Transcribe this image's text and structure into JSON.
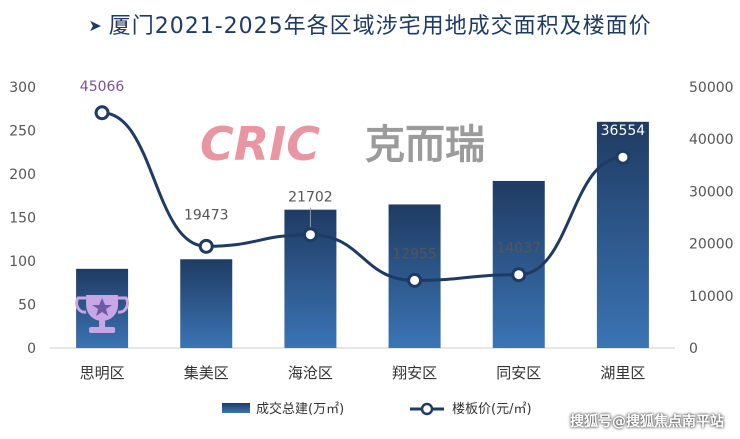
{
  "header": {
    "arrow": "➤",
    "title": "厦门2021-2025年各区域涉宅用地成交面积及楼面价"
  },
  "logo": {
    "brand": "CRIC",
    "brand_cn": "克而瑞",
    "color": "#e88a98"
  },
  "watermark": "搜狐号@搜狐焦点南平站",
  "chart_data": {
    "type": "bar",
    "categories": [
      "思明区",
      "集美区",
      "海沧区",
      "翔安区",
      "同安区",
      "湖里区"
    ],
    "series": [
      {
        "name": "成交总建(万㎡)",
        "type": "bar",
        "axis": "left",
        "values": [
          91,
          102,
          159,
          165,
          192,
          260
        ],
        "color": "#2a5d94"
      },
      {
        "name": "楼板价(元/㎡)",
        "type": "line",
        "axis": "right",
        "values": [
          45066,
          19473,
          21702,
          12955,
          14037,
          36554
        ],
        "labels": [
          "45066",
          "19473",
          "21702",
          "12955",
          "14037",
          "36554"
        ],
        "color": "#1f3b63"
      }
    ],
    "y_left": {
      "min": 0,
      "max": 300,
      "ticks": [
        "0",
        "50",
        "100",
        "150",
        "200",
        "250",
        "300"
      ]
    },
    "y_right": {
      "min": 0,
      "max": 50000,
      "ticks": [
        "0",
        "10000",
        "20000",
        "30000",
        "40000",
        "50000"
      ]
    },
    "highlight_label_color": "#7b4fa0",
    "trophy_color": "#c9a6e6",
    "grid": false,
    "legend_position": "bottom"
  }
}
